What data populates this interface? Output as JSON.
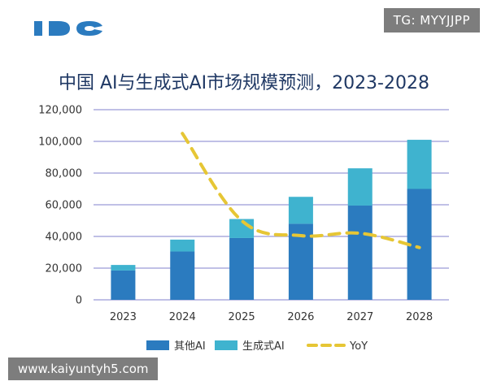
{
  "watermark_top": "TG: MYYJJPP",
  "watermark_bottom": "www.kaiyuntyh5.com",
  "colors": {
    "other_ai": "#2b7bbf",
    "generative_ai": "#3fb3cf",
    "yoy": "#e6c635",
    "grid": "#9a9ad6",
    "title": "#1f3864"
  },
  "chart_data": {
    "type": "bar",
    "stacked": true,
    "title": "中国 AI与生成式AI市场规模预测，2023-2028",
    "categories": [
      "2023",
      "2024",
      "2025",
      "2026",
      "2027",
      "2028"
    ],
    "y_ticks": [
      "0",
      "20,000",
      "40,000",
      "60,000",
      "80,000",
      "100,000",
      "120,000"
    ],
    "ylim": [
      0,
      120000
    ],
    "series": [
      {
        "name": "其他AI",
        "values": [
          18500,
          30500,
          39000,
          48000,
          59500,
          70000
        ]
      },
      {
        "name": "生成式AI",
        "values": [
          3500,
          7500,
          12000,
          17000,
          23500,
          31000
        ]
      }
    ],
    "line_series": {
      "name": "YoY",
      "style": "dashed",
      "x_categories": [
        "2024",
        "2025",
        "2026",
        "2027",
        "2028"
      ],
      "values_on_left_axis_scale": [
        105000,
        50000,
        40500,
        42000,
        33000
      ]
    },
    "legend": {
      "placement": "bottom",
      "labels": [
        "其他AI",
        "生成式AI",
        "YoY"
      ]
    },
    "grid": true
  }
}
